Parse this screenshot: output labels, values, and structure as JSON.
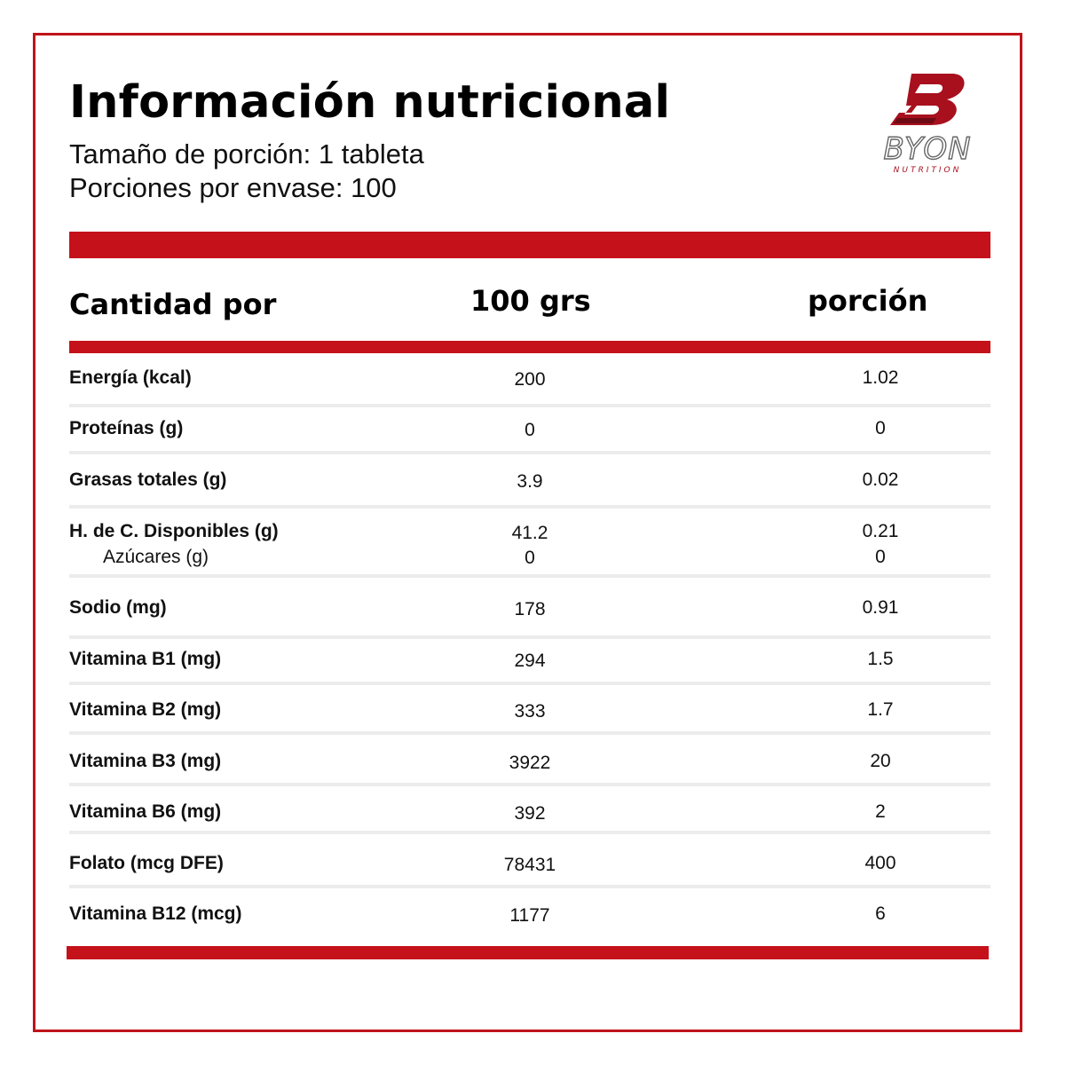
{
  "header": {
    "title": "Información nutricional",
    "serving_size": "Tamaño de porción: 1 tableta",
    "servings_per_container": "Porciones por envase: 100"
  },
  "logo": {
    "icon": "byon-b-logo-icon",
    "brand": "BYON",
    "tagline": "NUTRITION",
    "accent_color": "#a8101e"
  },
  "accent_color": "#c4111a",
  "table": {
    "columns": [
      "Cantidad por",
      "100 grs",
      "porción"
    ],
    "rows": [
      {
        "name": "Energía (kcal)",
        "per100": "200",
        "portion": "1.02"
      },
      {
        "name": "Proteínas (g)",
        "per100": "0",
        "portion": "0"
      },
      {
        "name": "Grasas totales (g)",
        "per100": "3.9",
        "portion": "0.02"
      },
      {
        "name": "H. de C. Disponibles (g)",
        "per100": "41.2",
        "portion": "0.21",
        "sub_name": "Azúcares (g)",
        "sub_per100": "0",
        "sub_portion": "0"
      },
      {
        "name": "Sodio (mg)",
        "per100": "178",
        "portion": "0.91"
      },
      {
        "name": "Vitamina B1 (mg)",
        "per100": "294",
        "portion": "1.5"
      },
      {
        "name": "Vitamina B2 (mg)",
        "per100": "333",
        "portion": "1.7"
      },
      {
        "name": "Vitamina B3 (mg)",
        "per100": "3922",
        "portion": "20"
      },
      {
        "name": "Vitamina B6 (mg)",
        "per100": "392",
        "portion": "2"
      },
      {
        "name": "Folato (mcg DFE)",
        "per100": "78431",
        "portion": "400"
      },
      {
        "name": "Vitamina B12 (mcg)",
        "per100": "1177",
        "portion": "6"
      }
    ]
  }
}
